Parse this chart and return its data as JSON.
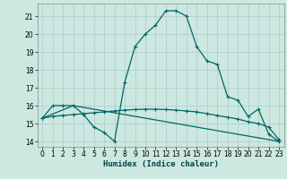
{
  "xlabel": "Humidex (Indice chaleur)",
  "bg_color": "#cce8e0",
  "grid_color": "#aacccc",
  "line_color": "#006666",
  "x_ticks": [
    0,
    1,
    2,
    3,
    4,
    5,
    6,
    7,
    8,
    9,
    10,
    11,
    12,
    13,
    14,
    15,
    16,
    17,
    18,
    19,
    20,
    21,
    22,
    23
  ],
  "y_ticks": [
    14,
    15,
    16,
    17,
    18,
    19,
    20,
    21
  ],
  "ylim": [
    13.7,
    21.7
  ],
  "xlim": [
    -0.5,
    23.5
  ],
  "curve1_x": [
    0,
    1,
    2,
    3,
    4,
    5,
    6,
    7,
    8,
    9,
    10,
    11,
    12,
    13,
    14,
    15,
    16,
    17,
    18,
    19,
    20,
    21,
    22,
    23
  ],
  "curve1_y": [
    15.3,
    16.0,
    16.0,
    16.0,
    15.5,
    14.8,
    14.5,
    14.0,
    17.3,
    19.3,
    20.0,
    20.5,
    21.3,
    21.3,
    21.0,
    19.3,
    18.5,
    18.3,
    16.5,
    16.3,
    15.4,
    15.8,
    14.4,
    14.0
  ],
  "curve2_x": [
    0,
    1,
    2,
    3,
    4,
    5,
    6,
    7,
    8,
    9,
    10,
    11,
    12,
    13,
    14,
    15,
    16,
    17,
    18,
    19,
    20,
    21,
    22,
    23
  ],
  "curve2_y": [
    15.3,
    15.4,
    15.45,
    15.5,
    15.55,
    15.6,
    15.65,
    15.7,
    15.75,
    15.78,
    15.8,
    15.8,
    15.78,
    15.75,
    15.7,
    15.65,
    15.55,
    15.45,
    15.35,
    15.25,
    15.1,
    15.0,
    14.8,
    14.1
  ],
  "curve3_x": [
    0,
    3,
    23
  ],
  "curve3_y": [
    15.3,
    16.0,
    14.0
  ]
}
